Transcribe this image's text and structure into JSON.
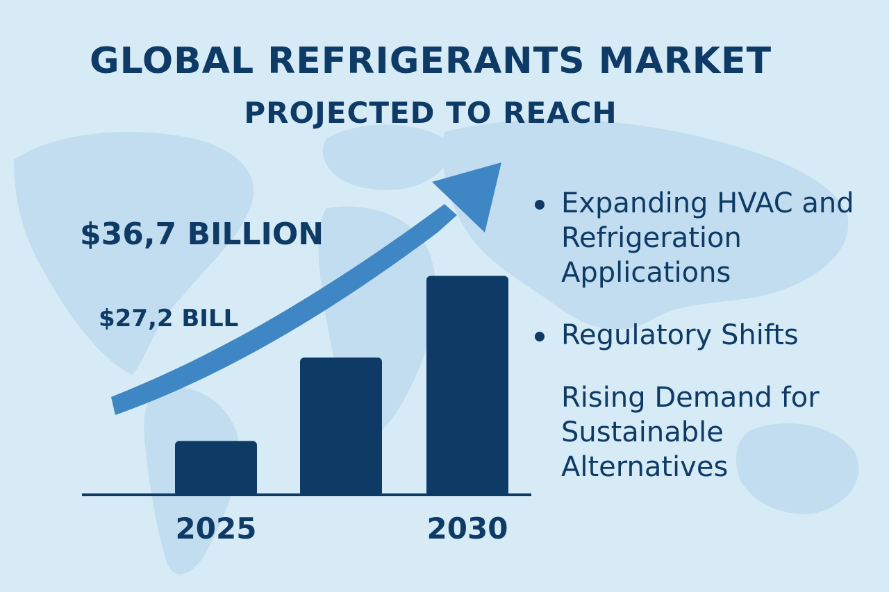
{
  "header": {
    "title": "GLOBAL REFRIGERANTS MARKET",
    "subtitle": "PROJECTED TO REACH"
  },
  "chart_data": {
    "type": "bar",
    "categories": [
      "2025",
      "",
      "2030"
    ],
    "values": [
      27.2,
      32.0,
      36.7
    ],
    "annotations": [
      "$27,2 BILL",
      "$36,7 BILLION"
    ],
    "trend_arrow": true
  },
  "bullets": [
    {
      "text": "Expanding HVAC and Refrigeration Applications",
      "dot": true
    },
    {
      "text": "Regulatory Shifts",
      "dot": true
    },
    {
      "text": "Rising Demand for Sustainable Alternatives",
      "dot": false
    }
  ],
  "colors": {
    "background": "#d6ebf5",
    "map": "#bfdcee",
    "bar": "#0e3a66",
    "arrow": "#3f86c4",
    "text": "#0e3a66"
  }
}
